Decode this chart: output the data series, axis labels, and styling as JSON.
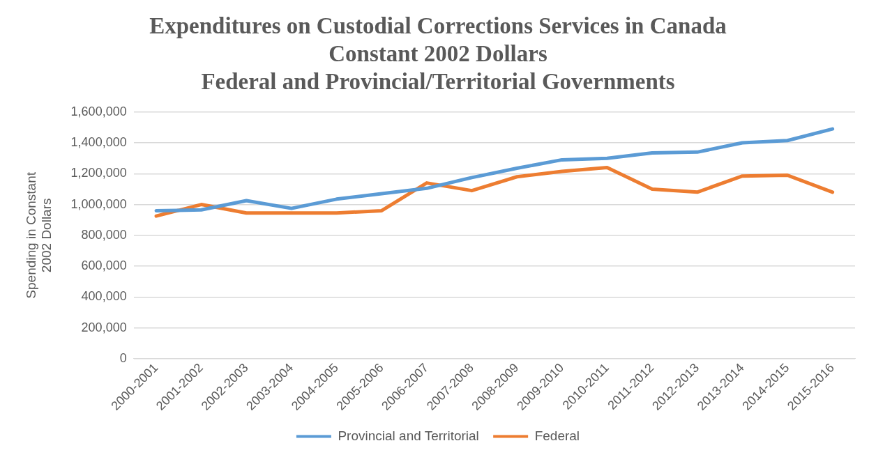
{
  "chart_data": {
    "type": "line",
    "title": "Expenditures on Custodial Corrections Services in Canada\nConstant 2002 Dollars\nFederal and Provincial/Territorial Governments",
    "ylabel": "Spending in Constant 2002 Dollars",
    "categories": [
      "2000-2001",
      "2001-2002",
      "2002-2003",
      "2003-2004",
      "2004-2005",
      "2005-2006",
      "2006-2007",
      "2007-2008",
      "2008-2009",
      "2009-2010",
      "2010-2011",
      "2011-2012",
      "2012-2013",
      "2013-2014",
      "2014-2015",
      "2015-2016"
    ],
    "series": [
      {
        "name": "Provincial and Territorial",
        "color": "#5b9bd5",
        "values": [
          960000,
          965000,
          1025000,
          975000,
          1035000,
          1070000,
          1105000,
          1175000,
          1235000,
          1290000,
          1300000,
          1335000,
          1340000,
          1400000,
          1415000,
          1490000
        ]
      },
      {
        "name": "Federal",
        "color": "#ed7d31",
        "values": [
          925000,
          1000000,
          945000,
          945000,
          945000,
          960000,
          1140000,
          1090000,
          1180000,
          1215000,
          1240000,
          1100000,
          1080000,
          1185000,
          1190000,
          1080000
        ]
      }
    ],
    "ylim": [
      0,
      1600000
    ],
    "yticks": [
      0,
      {
        "value": 200000,
        "label": "200,000"
      },
      {
        "value": 400000,
        "label": "400,000"
      },
      {
        "value": 600000,
        "label": "600,000"
      },
      {
        "value": 800000,
        "label": "800,000"
      },
      {
        "value": 1000000,
        "label": "1,000,000"
      },
      {
        "value": 1200000,
        "label": "1,200,000"
      },
      {
        "value": 1400000,
        "label": "1,400,000"
      },
      {
        "value": 1600000,
        "label": "1,600,000"
      }
    ],
    "grid": "y",
    "legend": "bottom",
    "marker": "none",
    "line_style": "solid"
  }
}
